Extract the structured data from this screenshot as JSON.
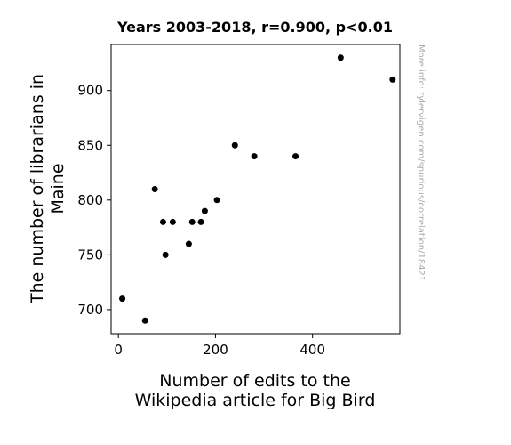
{
  "chart_data": {
    "type": "scatter",
    "title": "Years 2003-2018, r=0.900, p<0.01",
    "xlabel": [
      "Number of edits to the",
      "Wikipedia article for Big Bird"
    ],
    "ylabel": [
      "The number of librarians in",
      "Maine"
    ],
    "xlim": [
      -15,
      580
    ],
    "ylim": [
      678,
      942
    ],
    "xticks": [
      0,
      200,
      400
    ],
    "yticks": [
      700,
      750,
      800,
      850,
      900
    ],
    "grid": false,
    "point_color": "#000000",
    "points": [
      {
        "x": 8,
        "y": 710
      },
      {
        "x": 55,
        "y": 690
      },
      {
        "x": 75,
        "y": 810
      },
      {
        "x": 92,
        "y": 780
      },
      {
        "x": 97,
        "y": 750
      },
      {
        "x": 112,
        "y": 780
      },
      {
        "x": 145,
        "y": 760
      },
      {
        "x": 152,
        "y": 780
      },
      {
        "x": 170,
        "y": 780
      },
      {
        "x": 178,
        "y": 790
      },
      {
        "x": 203,
        "y": 800
      },
      {
        "x": 240,
        "y": 850
      },
      {
        "x": 280,
        "y": 840
      },
      {
        "x": 365,
        "y": 840
      },
      {
        "x": 458,
        "y": 930
      },
      {
        "x": 565,
        "y": 910
      }
    ]
  },
  "watermark": "More info: tylervigen.com/spurious/correlation/18421"
}
